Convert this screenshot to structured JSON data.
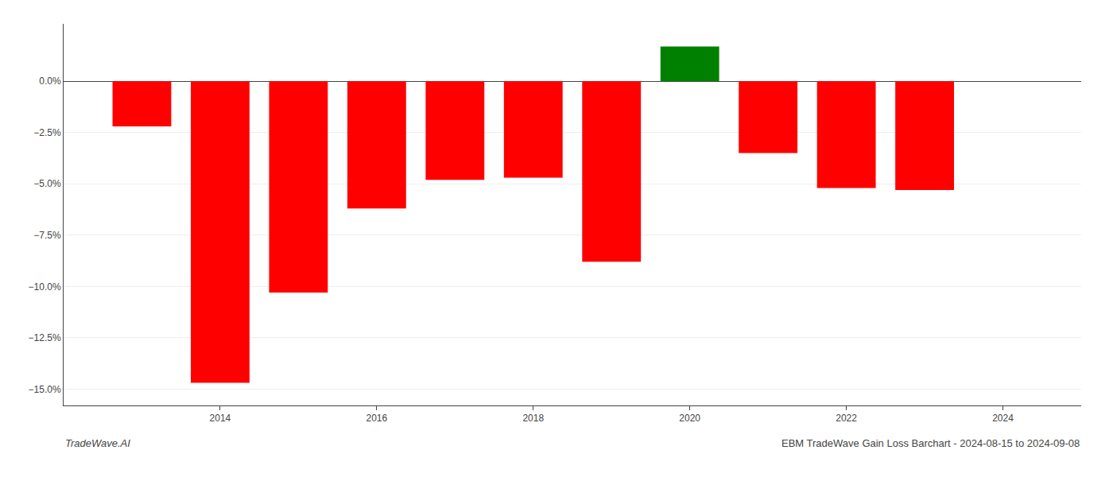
{
  "chart_data": {
    "type": "bar",
    "title": "EBM TradeWave Gain Loss Barchart - 2024-08-15 to 2024-09-08",
    "annotations": [
      "TradeWave.AI"
    ],
    "x": [
      2013,
      2014,
      2015,
      2016,
      2017,
      2018,
      2019,
      2020,
      2021,
      2022,
      2023
    ],
    "values": [
      -2.2,
      -14.7,
      -10.3,
      -6.2,
      -4.8,
      -4.7,
      -8.8,
      1.7,
      -3.5,
      -5.2,
      -5.3
    ],
    "colors": [
      "#ff0000",
      "#ff0000",
      "#ff0000",
      "#ff0000",
      "#ff0000",
      "#ff0000",
      "#ff0000",
      "#008000",
      "#ff0000",
      "#ff0000",
      "#ff0000"
    ],
    "xlim": [
      2012.0,
      2025.0
    ],
    "xticks": [
      2014,
      2016,
      2018,
      2020,
      2022,
      2024
    ],
    "ylim": [
      -15.8,
      2.8
    ],
    "yticks": [
      {
        "value": 0.0,
        "label": "0.0%"
      },
      {
        "value": -2.5,
        "label": "−2.5%"
      },
      {
        "value": -5.0,
        "label": "−5.0%"
      },
      {
        "value": -7.5,
        "label": "−7.5%"
      },
      {
        "value": -10.0,
        "label": "−10.0%"
      },
      {
        "value": -12.5,
        "label": "−12.5%"
      },
      {
        "value": -15.0,
        "label": "−15.0%"
      }
    ],
    "grid": "y"
  }
}
